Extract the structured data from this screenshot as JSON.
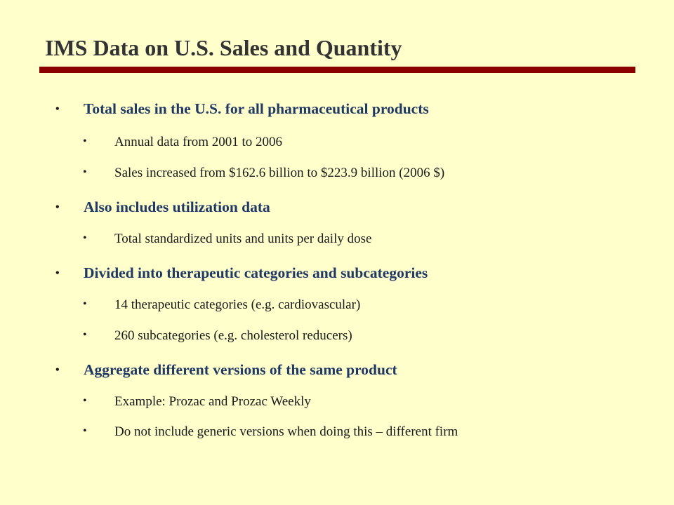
{
  "slide": {
    "title": "IMS Data on U.S. Sales and Quantity",
    "bullet_glyph": "•",
    "colors": {
      "background": "#ffffcc",
      "rule": "#8b0000",
      "heading_text": "#1f3864",
      "title_text": "#333333"
    },
    "bullets": [
      {
        "text": "Total sales in the U.S. for all pharmaceutical products",
        "sub": [
          "Annual data from 2001 to 2006",
          "Sales increased from $162.6 billion to $223.9 billion (2006 $)"
        ]
      },
      {
        "text": "Also includes utilization data",
        "sub": [
          "Total standardized units and units per daily dose"
        ]
      },
      {
        "text": "Divided into therapeutic categories and subcategories",
        "sub": [
          "14 therapeutic categories (e.g. cardiovascular)",
          "260 subcategories (e.g. cholesterol reducers)"
        ]
      },
      {
        "text": "Aggregate different versions of the same product",
        "sub": [
          "Example: Prozac and Prozac Weekly",
          "Do not include generic versions when doing this – different firm"
        ]
      }
    ]
  }
}
